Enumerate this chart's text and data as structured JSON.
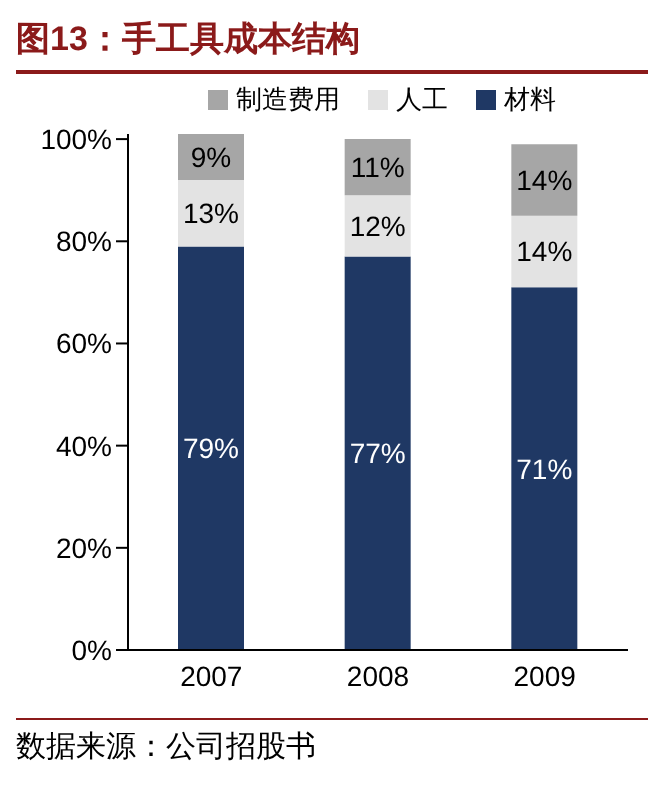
{
  "chart_data": {
    "type": "bar",
    "title": "图13：手工具成本结构",
    "stacked": true,
    "categories": [
      "2007",
      "2008",
      "2009"
    ],
    "series": [
      {
        "name": "材料",
        "color": "#1f3864",
        "values": [
          79,
          77,
          71
        ],
        "value_labels": [
          "79%",
          "77%",
          "71%"
        ]
      },
      {
        "name": "人工",
        "color": "#e3e3e3",
        "values": [
          13,
          12,
          14
        ],
        "value_labels": [
          "13%",
          "12%",
          "14%"
        ]
      },
      {
        "name": "制造费用",
        "color": "#a6a6a6",
        "values": [
          9,
          11,
          14
        ],
        "value_labels": [
          "9%",
          "11%",
          "14%"
        ]
      }
    ],
    "ylim": [
      0,
      101
    ],
    "yticks": [
      {
        "value": 0,
        "label": "0%"
      },
      {
        "value": 20,
        "label": "20%"
      },
      {
        "value": 40,
        "label": "40%"
      },
      {
        "value": 60,
        "label": "60%"
      },
      {
        "value": 80,
        "label": "80%"
      },
      {
        "value": 100,
        "label": "100%"
      }
    ],
    "legend": "top",
    "grid": false,
    "annotations": [
      "数据来源：公司招股书"
    ]
  }
}
